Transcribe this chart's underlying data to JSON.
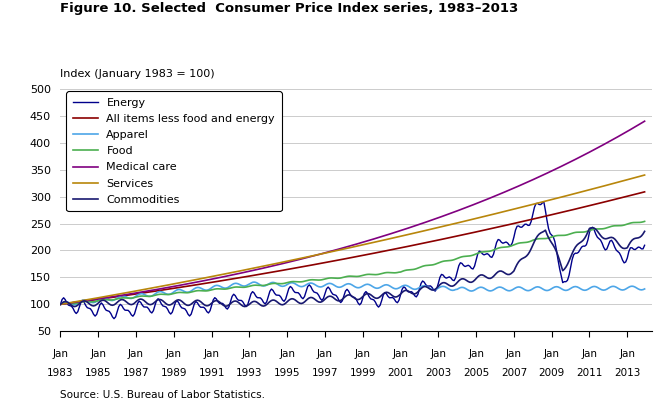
{
  "title": "Figure 10. Selected  Consumer Price Index series, 1983–2013",
  "ylabel": "Index (January 1983 = 100)",
  "source": "Source: U.S. Bureau of Labor Statistics.",
  "ylim": [
    50,
    500
  ],
  "yticks": [
    50,
    100,
    150,
    200,
    250,
    300,
    350,
    400,
    450,
    500
  ],
  "series_order": [
    "Energy",
    "All items less food and energy",
    "Apparel",
    "Food",
    "Medical care",
    "Services",
    "Commodities"
  ],
  "series_colors": {
    "Energy": "#00008B",
    "All items less food and energy": "#8B0000",
    "Apparel": "#4DA6E8",
    "Food": "#4CAF50",
    "Medical care": "#800080",
    "Services": "#B8860B",
    "Commodities": "#191970"
  },
  "series_linewidths": {
    "Energy": 1.0,
    "All items less food and energy": 1.2,
    "Apparel": 1.2,
    "Food": 1.2,
    "Medical care": 1.2,
    "Services": 1.2,
    "Commodities": 1.2
  },
  "xtick_years": [
    1983,
    1985,
    1987,
    1989,
    1991,
    1993,
    1995,
    1997,
    1999,
    2001,
    2003,
    2005,
    2007,
    2009,
    2011,
    2013
  ],
  "figsize": [
    6.72,
    4.04
  ],
  "dpi": 100
}
